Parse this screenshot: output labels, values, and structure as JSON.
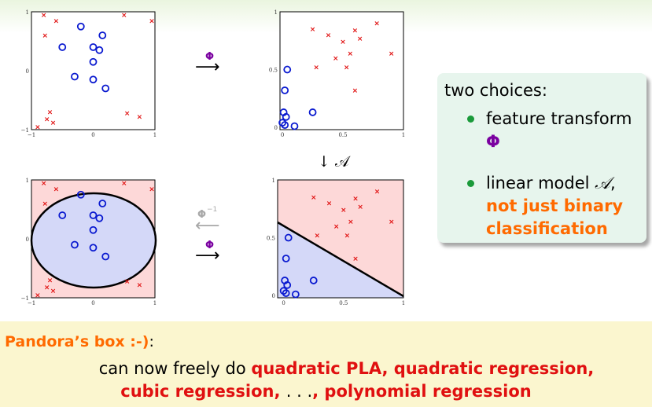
{
  "plots": {
    "tl": {
      "xticks": [
        "−1",
        "0",
        "1"
      ],
      "yticks": [
        "−1",
        "0",
        "1"
      ],
      "circles": [
        [
          -0.2,
          0.75
        ],
        [
          0.15,
          0.6
        ],
        [
          -0.5,
          0.4
        ],
        [
          0.0,
          0.4
        ],
        [
          0.1,
          0.35
        ],
        [
          0.0,
          0.15
        ],
        [
          -0.3,
          -0.1
        ],
        [
          0.0,
          -0.15
        ],
        [
          0.2,
          -0.3
        ]
      ],
      "crosses": [
        [
          -0.8,
          0.95
        ],
        [
          0.5,
          0.95
        ],
        [
          -0.6,
          0.85
        ],
        [
          0.95,
          0.85
        ],
        [
          -0.78,
          0.6
        ],
        [
          -0.7,
          -0.7
        ],
        [
          0.55,
          -0.72
        ],
        [
          -0.75,
          -0.82
        ],
        [
          -0.65,
          -0.88
        ],
        [
          0.75,
          -0.78
        ],
        [
          -0.9,
          -0.95
        ]
      ]
    },
    "tr": {
      "xticks": [
        "0",
        "0.5",
        "1"
      ],
      "yticks": [
        "0",
        "0.5",
        "1"
      ],
      "circles": [
        [
          0.04,
          0.5
        ],
        [
          0.02,
          0.32
        ],
        [
          0.25,
          0.13
        ],
        [
          0.01,
          0.13
        ],
        [
          0.03,
          0.09
        ],
        [
          0.0,
          0.04
        ],
        [
          0.02,
          0.02
        ],
        [
          0.1,
          0.01
        ]
      ],
      "crosses": [
        [
          0.25,
          0.85
        ],
        [
          0.38,
          0.8
        ],
        [
          0.6,
          0.84
        ],
        [
          0.78,
          0.9
        ],
        [
          0.5,
          0.74
        ],
        [
          0.64,
          0.77
        ],
        [
          0.9,
          0.64
        ],
        [
          0.44,
          0.6
        ],
        [
          0.56,
          0.64
        ],
        [
          0.28,
          0.52
        ],
        [
          0.53,
          0.52
        ],
        [
          0.6,
          0.32
        ]
      ]
    },
    "bl": {
      "xticks": [
        "−1",
        "0",
        "1"
      ],
      "yticks": [
        "−1",
        "0",
        "1"
      ],
      "circles": [
        [
          -0.2,
          0.75
        ],
        [
          0.15,
          0.6
        ],
        [
          -0.5,
          0.4
        ],
        [
          0.0,
          0.4
        ],
        [
          0.1,
          0.35
        ],
        [
          0.0,
          0.15
        ],
        [
          -0.3,
          -0.1
        ],
        [
          0.0,
          -0.15
        ],
        [
          0.2,
          -0.3
        ]
      ],
      "crosses": [
        [
          -0.8,
          0.95
        ],
        [
          0.5,
          0.95
        ],
        [
          -0.6,
          0.85
        ],
        [
          0.95,
          0.85
        ],
        [
          -0.78,
          0.6
        ],
        [
          -0.7,
          -0.7
        ],
        [
          0.55,
          -0.72
        ],
        [
          -0.75,
          -0.82
        ],
        [
          -0.65,
          -0.88
        ],
        [
          0.75,
          -0.78
        ],
        [
          -0.9,
          -0.95
        ]
      ]
    },
    "br": {
      "xticks": [
        "0",
        "0.5",
        "1"
      ],
      "yticks": [
        "0",
        "0.5",
        "1"
      ],
      "circles": [
        [
          0.04,
          0.5
        ],
        [
          0.02,
          0.32
        ],
        [
          0.25,
          0.13
        ],
        [
          0.01,
          0.13
        ],
        [
          0.03,
          0.09
        ],
        [
          0.0,
          0.04
        ],
        [
          0.02,
          0.02
        ],
        [
          0.1,
          0.01
        ]
      ],
      "crosses": [
        [
          0.25,
          0.85
        ],
        [
          0.38,
          0.8
        ],
        [
          0.6,
          0.84
        ],
        [
          0.78,
          0.9
        ],
        [
          0.5,
          0.74
        ],
        [
          0.64,
          0.77
        ],
        [
          0.9,
          0.64
        ],
        [
          0.44,
          0.6
        ],
        [
          0.56,
          0.64
        ],
        [
          0.28,
          0.52
        ],
        [
          0.53,
          0.52
        ],
        [
          0.6,
          0.32
        ]
      ]
    }
  },
  "arrows": {
    "phi": "Φ",
    "phi_inverse": "Φ",
    "inverse_exp": "−1",
    "right_arrow": "⟶",
    "left_arrow": "⟵",
    "down_label": "↓ 𝒜"
  },
  "side": {
    "title": "two choices:",
    "item1_text": "feature transform",
    "item1_symbol": "Φ",
    "item2_text": "linear model ",
    "item2_symbol": "𝒜",
    "item2_comma": ",",
    "item2_orange_1": "not just binary",
    "item2_orange_2": "classification"
  },
  "bottom": {
    "title": "Pandora’s box :-)",
    "colon": ":",
    "line1_plain": "can now freely do ",
    "line1_red": "quadratic PLA, quadratic regression,",
    "line2_red_1": "cubic regression, ",
    "line2_dots": ". . .",
    "line2_red_2": ", polynomial regression"
  },
  "colors": {
    "cross": "#e01010",
    "circle": "#0a1ad0",
    "region_pos": "#fdd8d8",
    "region_neg": "#d4d8f8",
    "phi": "#7a00a0",
    "orange": "#ff6a00",
    "bullet": "#1a9a3a"
  }
}
